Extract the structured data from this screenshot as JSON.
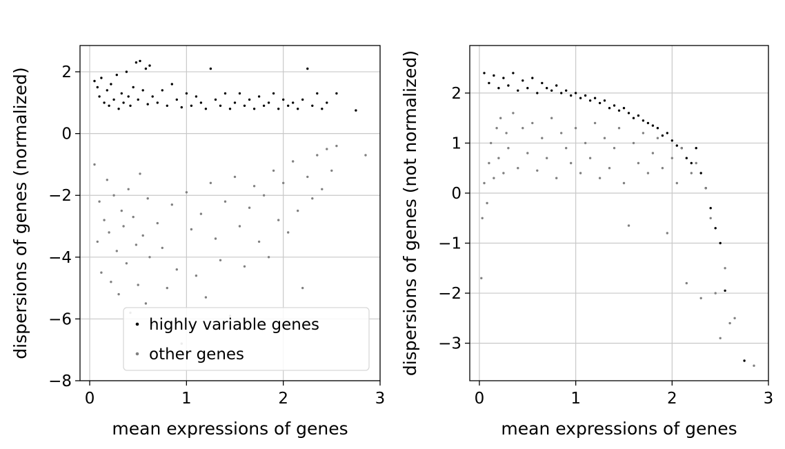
{
  "chart_data": [
    {
      "type": "scatter",
      "xlabel": "mean expressions of genes",
      "ylabel": "dispersions of genes (normalized)",
      "xlim": [
        -0.1,
        3.0
      ],
      "ylim": [
        -8.0,
        2.85
      ],
      "xticks": [
        0,
        1,
        2,
        3
      ],
      "xtick_labels": [
        "0",
        "1",
        "2",
        "3"
      ],
      "yticks": [
        2,
        0,
        -2,
        -4,
        -6,
        -8
      ],
      "ytick_labels": [
        "2",
        "0",
        "−2",
        "−4",
        "−6",
        "−8"
      ],
      "grid": true,
      "legend_position": "lower-right",
      "series": [
        {
          "name": "highly variable genes",
          "color": "#000000",
          "points": [
            [
              0.05,
              1.7
            ],
            [
              0.08,
              1.5
            ],
            [
              0.1,
              1.2
            ],
            [
              0.12,
              1.8
            ],
            [
              0.15,
              1.0
            ],
            [
              0.18,
              1.4
            ],
            [
              0.2,
              0.9
            ],
            [
              0.22,
              1.6
            ],
            [
              0.25,
              1.1
            ],
            [
              0.28,
              1.9
            ],
            [
              0.3,
              0.8
            ],
            [
              0.33,
              1.3
            ],
            [
              0.35,
              1.0
            ],
            [
              0.38,
              2.0
            ],
            [
              0.4,
              1.2
            ],
            [
              0.42,
              0.9
            ],
            [
              0.45,
              1.5
            ],
            [
              0.48,
              2.3
            ],
            [
              0.5,
              1.1
            ],
            [
              0.52,
              2.35
            ],
            [
              0.55,
              1.4
            ],
            [
              0.58,
              2.1
            ],
            [
              0.6,
              0.95
            ],
            [
              0.62,
              2.2
            ],
            [
              0.65,
              1.2
            ],
            [
              0.7,
              1.0
            ],
            [
              0.75,
              1.4
            ],
            [
              0.8,
              0.9
            ],
            [
              0.85,
              1.6
            ],
            [
              0.9,
              1.1
            ],
            [
              0.95,
              0.85
            ],
            [
              1.0,
              1.3
            ],
            [
              1.05,
              0.9
            ],
            [
              1.1,
              1.2
            ],
            [
              1.15,
              1.0
            ],
            [
              1.2,
              0.8
            ],
            [
              1.25,
              2.1
            ],
            [
              1.3,
              1.1
            ],
            [
              1.35,
              0.9
            ],
            [
              1.4,
              1.3
            ],
            [
              1.45,
              0.8
            ],
            [
              1.5,
              1.0
            ],
            [
              1.55,
              1.3
            ],
            [
              1.6,
              0.9
            ],
            [
              1.65,
              1.1
            ],
            [
              1.7,
              0.8
            ],
            [
              1.75,
              1.2
            ],
            [
              1.8,
              0.9
            ],
            [
              1.85,
              1.0
            ],
            [
              1.9,
              1.3
            ],
            [
              1.95,
              0.8
            ],
            [
              2.0,
              1.1
            ],
            [
              2.05,
              0.9
            ],
            [
              2.1,
              1.0
            ],
            [
              2.15,
              0.8
            ],
            [
              2.2,
              1.1
            ],
            [
              2.25,
              2.1
            ],
            [
              2.3,
              0.9
            ],
            [
              2.35,
              1.3
            ],
            [
              2.4,
              0.8
            ],
            [
              2.45,
              1.0
            ],
            [
              2.55,
              1.3
            ],
            [
              2.75,
              0.75
            ]
          ]
        },
        {
          "name": "other genes",
          "color": "#808080",
          "points": [
            [
              0.05,
              -1.0
            ],
            [
              0.08,
              -3.5
            ],
            [
              0.1,
              -2.2
            ],
            [
              0.12,
              -4.5
            ],
            [
              0.15,
              -2.8
            ],
            [
              0.18,
              -1.5
            ],
            [
              0.2,
              -3.2
            ],
            [
              0.22,
              -4.8
            ],
            [
              0.25,
              -2.0
            ],
            [
              0.28,
              -3.8
            ],
            [
              0.3,
              -5.2
            ],
            [
              0.33,
              -2.5
            ],
            [
              0.35,
              -3.0
            ],
            [
              0.38,
              -4.2
            ],
            [
              0.4,
              -1.8
            ],
            [
              0.42,
              -5.8
            ],
            [
              0.45,
              -2.7
            ],
            [
              0.48,
              -3.6
            ],
            [
              0.5,
              -4.9
            ],
            [
              0.52,
              -1.3
            ],
            [
              0.55,
              -3.3
            ],
            [
              0.58,
              -5.5
            ],
            [
              0.6,
              -2.1
            ],
            [
              0.62,
              -4.0
            ],
            [
              0.65,
              -6.2
            ],
            [
              0.7,
              -2.9
            ],
            [
              0.75,
              -3.7
            ],
            [
              0.8,
              -5.0
            ],
            [
              0.85,
              -2.3
            ],
            [
              0.9,
              -4.4
            ],
            [
              0.95,
              -6.8
            ],
            [
              1.0,
              -1.9
            ],
            [
              1.05,
              -3.1
            ],
            [
              1.1,
              -4.6
            ],
            [
              1.15,
              -2.6
            ],
            [
              1.2,
              -5.3
            ],
            [
              1.25,
              -1.6
            ],
            [
              1.3,
              -3.4
            ],
            [
              1.35,
              -4.1
            ],
            [
              1.4,
              -2.2
            ],
            [
              1.45,
              -5.9
            ],
            [
              1.5,
              -1.4
            ],
            [
              1.55,
              -3.0
            ],
            [
              1.6,
              -4.3
            ],
            [
              1.65,
              -2.4
            ],
            [
              1.7,
              -1.7
            ],
            [
              1.75,
              -3.5
            ],
            [
              1.8,
              -2.0
            ],
            [
              1.85,
              -4.0
            ],
            [
              1.9,
              -1.2
            ],
            [
              1.95,
              -2.8
            ],
            [
              2.0,
              -1.6
            ],
            [
              2.05,
              -3.2
            ],
            [
              2.1,
              -0.9
            ],
            [
              2.15,
              -2.5
            ],
            [
              2.2,
              -5.0
            ],
            [
              2.25,
              -1.4
            ],
            [
              2.3,
              -2.1
            ],
            [
              2.35,
              -0.7
            ],
            [
              2.4,
              -1.8
            ],
            [
              2.45,
              -0.5
            ],
            [
              2.5,
              -1.2
            ],
            [
              2.55,
              -0.4
            ],
            [
              2.85,
              -0.7
            ]
          ]
        }
      ]
    },
    {
      "type": "scatter",
      "xlabel": "mean expressions of genes",
      "ylabel": "dispersions of genes (not normalized)",
      "xlim": [
        -0.1,
        3.0
      ],
      "ylim": [
        -3.75,
        2.95
      ],
      "xticks": [
        0,
        1,
        2,
        3
      ],
      "xtick_labels": [
        "0",
        "1",
        "2",
        "3"
      ],
      "yticks": [
        2,
        1,
        0,
        -1,
        -2,
        -3
      ],
      "ytick_labels": [
        "2",
        "1",
        "0",
        "−1",
        "−2",
        "−3"
      ],
      "grid": true,
      "series": [
        {
          "name": "highly variable genes",
          "color": "#000000",
          "points": [
            [
              0.05,
              2.4
            ],
            [
              0.1,
              2.2
            ],
            [
              0.15,
              2.35
            ],
            [
              0.2,
              2.1
            ],
            [
              0.25,
              2.3
            ],
            [
              0.3,
              2.15
            ],
            [
              0.35,
              2.4
            ],
            [
              0.4,
              2.05
            ],
            [
              0.45,
              2.25
            ],
            [
              0.5,
              2.1
            ],
            [
              0.55,
              2.3
            ],
            [
              0.6,
              2.0
            ],
            [
              0.65,
              2.2
            ],
            [
              0.7,
              2.1
            ],
            [
              0.75,
              2.05
            ],
            [
              0.8,
              2.15
            ],
            [
              0.85,
              2.0
            ],
            [
              0.9,
              2.05
            ],
            [
              0.95,
              1.95
            ],
            [
              1.0,
              2.0
            ],
            [
              1.05,
              1.9
            ],
            [
              1.1,
              1.95
            ],
            [
              1.15,
              1.85
            ],
            [
              1.2,
              1.9
            ],
            [
              1.25,
              1.8
            ],
            [
              1.3,
              1.85
            ],
            [
              1.35,
              1.7
            ],
            [
              1.4,
              1.75
            ],
            [
              1.45,
              1.65
            ],
            [
              1.5,
              1.7
            ],
            [
              1.55,
              1.6
            ],
            [
              1.6,
              1.5
            ],
            [
              1.65,
              1.55
            ],
            [
              1.7,
              1.45
            ],
            [
              1.75,
              1.4
            ],
            [
              1.8,
              1.35
            ],
            [
              1.85,
              1.3
            ],
            [
              1.9,
              1.15
            ],
            [
              1.95,
              1.2
            ],
            [
              2.0,
              1.05
            ],
            [
              2.05,
              0.95
            ],
            [
              2.1,
              0.9
            ],
            [
              2.15,
              0.7
            ],
            [
              2.2,
              0.6
            ],
            [
              2.25,
              0.9
            ],
            [
              2.3,
              0.4
            ],
            [
              2.35,
              0.1
            ],
            [
              2.4,
              -0.3
            ],
            [
              2.45,
              -0.7
            ],
            [
              2.5,
              -1.0
            ],
            [
              2.55,
              -1.95
            ],
            [
              2.75,
              -3.35
            ]
          ]
        },
        {
          "name": "other genes",
          "color": "#808080",
          "points": [
            [
              0.02,
              -1.7
            ],
            [
              0.03,
              -0.5
            ],
            [
              0.05,
              0.2
            ],
            [
              0.08,
              -0.2
            ],
            [
              0.1,
              0.6
            ],
            [
              0.12,
              1.0
            ],
            [
              0.15,
              0.3
            ],
            [
              0.18,
              1.3
            ],
            [
              0.2,
              0.7
            ],
            [
              0.22,
              1.5
            ],
            [
              0.25,
              0.4
            ],
            [
              0.28,
              1.2
            ],
            [
              0.3,
              0.9
            ],
            [
              0.35,
              1.6
            ],
            [
              0.4,
              0.5
            ],
            [
              0.45,
              1.3
            ],
            [
              0.5,
              0.8
            ],
            [
              0.55,
              1.4
            ],
            [
              0.6,
              0.45
            ],
            [
              0.65,
              1.1
            ],
            [
              0.7,
              0.7
            ],
            [
              0.75,
              1.5
            ],
            [
              0.8,
              0.3
            ],
            [
              0.85,
              1.2
            ],
            [
              0.9,
              0.9
            ],
            [
              0.95,
              0.6
            ],
            [
              1.0,
              1.3
            ],
            [
              1.05,
              0.4
            ],
            [
              1.1,
              1.0
            ],
            [
              1.15,
              0.7
            ],
            [
              1.2,
              1.4
            ],
            [
              1.25,
              0.3
            ],
            [
              1.3,
              1.1
            ],
            [
              1.35,
              0.5
            ],
            [
              1.4,
              0.9
            ],
            [
              1.45,
              1.3
            ],
            [
              1.5,
              0.2
            ],
            [
              1.55,
              -0.65
            ],
            [
              1.6,
              1.0
            ],
            [
              1.65,
              0.6
            ],
            [
              1.7,
              1.2
            ],
            [
              1.75,
              0.4
            ],
            [
              1.8,
              0.8
            ],
            [
              1.85,
              1.1
            ],
            [
              1.9,
              0.5
            ],
            [
              1.95,
              -0.8
            ],
            [
              2.0,
              0.7
            ],
            [
              2.05,
              0.2
            ],
            [
              2.1,
              0.9
            ],
            [
              2.15,
              -1.8
            ],
            [
              2.2,
              0.4
            ],
            [
              2.25,
              0.6
            ],
            [
              2.3,
              -2.1
            ],
            [
              2.35,
              0.1
            ],
            [
              2.4,
              -0.5
            ],
            [
              2.45,
              -2.0
            ],
            [
              2.5,
              -2.9
            ],
            [
              2.55,
              -1.5
            ],
            [
              2.6,
              -2.6
            ],
            [
              2.65,
              -2.5
            ],
            [
              2.85,
              -3.45
            ]
          ]
        }
      ]
    }
  ]
}
